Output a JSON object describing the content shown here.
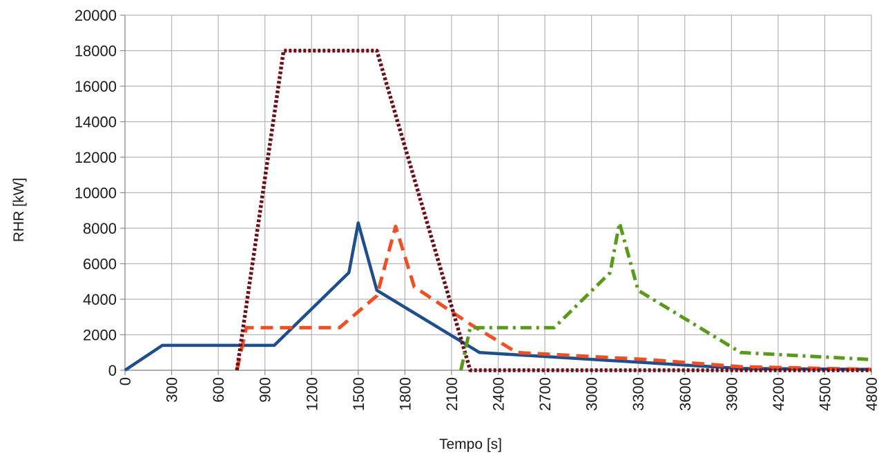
{
  "chart_data": {
    "type": "line",
    "title": "",
    "xlabel": "Tempo [s]",
    "ylabel": "RHR [kW]",
    "xlim": [
      0,
      4800
    ],
    "ylim": [
      0,
      20000
    ],
    "grid": true,
    "x_ticks": [
      "0",
      "300",
      "600",
      "900",
      "1200",
      "1500",
      "1800",
      "2100",
      "2400",
      "2700",
      "3000",
      "3300",
      "3600",
      "3900",
      "4200",
      "4500",
      "4800"
    ],
    "y_ticks": [
      "0",
      "2000",
      "4000",
      "6000",
      "8000",
      "10000",
      "12000",
      "14000",
      "16000",
      "18000",
      "20000"
    ],
    "series": [
      {
        "color": "#1f4e8c",
        "style": "solid",
        "points": [
          [
            0,
            0
          ],
          [
            240,
            1400
          ],
          [
            960,
            1400
          ],
          [
            1440,
            5500
          ],
          [
            1500,
            8300
          ],
          [
            1620,
            4500
          ],
          [
            2280,
            1000
          ],
          [
            3960,
            100
          ],
          [
            4800,
            50
          ]
        ]
      },
      {
        "color": "#f04e23",
        "style": "dashed",
        "points": [
          [
            720,
            0
          ],
          [
            780,
            2400
          ],
          [
            1380,
            2400
          ],
          [
            1620,
            4200
          ],
          [
            1740,
            8100
          ],
          [
            1860,
            4700
          ],
          [
            2220,
            2600
          ],
          [
            2520,
            1000
          ],
          [
            3360,
            600
          ],
          [
            3960,
            200
          ],
          [
            4800,
            50
          ]
        ]
      },
      {
        "color": "#6b0f1a",
        "style": "dotted",
        "points": [
          [
            720,
            0
          ],
          [
            1020,
            18000
          ],
          [
            1620,
            18000
          ],
          [
            2220,
            0
          ],
          [
            4800,
            0
          ]
        ]
      },
      {
        "color": "#5a9a1b",
        "style": "dash-dot",
        "points": [
          [
            2160,
            0
          ],
          [
            2220,
            2400
          ],
          [
            2760,
            2400
          ],
          [
            3120,
            5500
          ],
          [
            3180,
            8300
          ],
          [
            3300,
            4500
          ],
          [
            3960,
            1000
          ],
          [
            4800,
            600
          ]
        ]
      }
    ]
  }
}
